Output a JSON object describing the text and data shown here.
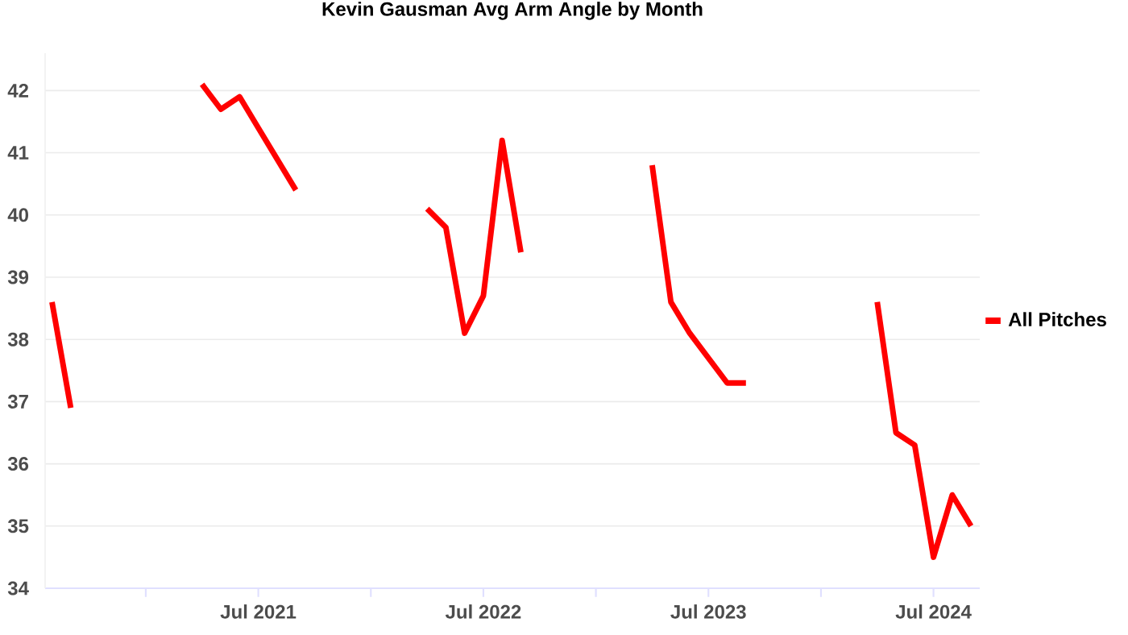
{
  "chart_data": {
    "type": "line",
    "title": "Kevin Gausman Avg Arm Angle by Month",
    "x": [
      "2020-08",
      "2020-09",
      null,
      "2021-04",
      "2021-05",
      "2021-06",
      "2021-07",
      "2021-08",
      "2021-09",
      null,
      "2022-04",
      "2022-05",
      "2022-06",
      "2022-07",
      "2022-08",
      "2022-09",
      null,
      "2023-04",
      "2023-05",
      "2023-06",
      "2023-07",
      "2023-08",
      "2023-09",
      null,
      "2024-04",
      "2024-05",
      "2024-06",
      "2024-07",
      "2024-08",
      "2024-09"
    ],
    "series": [
      {
        "name": "All Pitches",
        "color": "#ff0000",
        "values": [
          38.6,
          36.9,
          null,
          42.1,
          41.7,
          41.9,
          41.4,
          40.9,
          40.4,
          null,
          40.1,
          39.8,
          38.1,
          38.7,
          41.2,
          39.4,
          null,
          40.8,
          38.6,
          38.1,
          37.7,
          37.3,
          37.3,
          null,
          38.6,
          36.5,
          36.3,
          34.5,
          35.5,
          35.0
        ]
      }
    ],
    "xlim": [
      "2020-07-20",
      "2024-09-15"
    ],
    "xticks": [
      {
        "value": "2021-01",
        "label": null
      },
      {
        "value": "2021-07",
        "label": "Jul 2021"
      },
      {
        "value": "2022-01",
        "label": null
      },
      {
        "value": "2022-07",
        "label": "Jul 2022"
      },
      {
        "value": "2023-01",
        "label": null
      },
      {
        "value": "2023-07",
        "label": "Jul 2023"
      },
      {
        "value": "2024-01",
        "label": null
      },
      {
        "value": "2024-07",
        "label": "Jul 2024"
      }
    ],
    "ylim": [
      34,
      42.6
    ],
    "yticks": [
      34,
      35,
      36,
      37,
      38,
      39,
      40,
      41,
      42
    ],
    "grid": "y",
    "legend": "right",
    "marker": "none",
    "line_style": "solid"
  }
}
